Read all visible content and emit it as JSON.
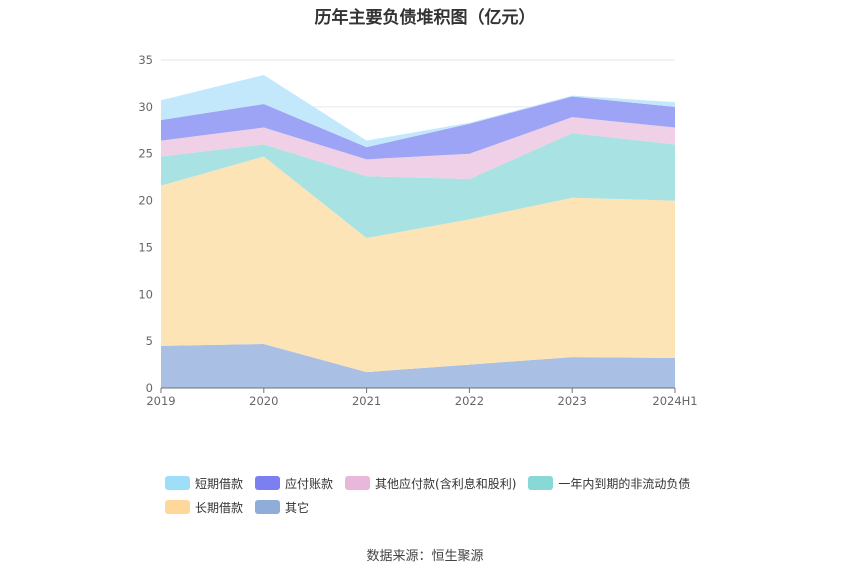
{
  "chart_data": {
    "type": "area",
    "stacked": true,
    "title": "历年主要负债堆积图（亿元）",
    "categories": [
      "2019",
      "2020",
      "2021",
      "2022",
      "2023",
      "2024H1"
    ],
    "ylim": [
      0,
      35
    ],
    "yticks": [
      0,
      5,
      10,
      15,
      20,
      25,
      30,
      35
    ],
    "grid": true,
    "legend_position": "bottom",
    "series": [
      {
        "name": "其它",
        "color": "#a9bfe3",
        "values": [
          4.5,
          4.7,
          1.7,
          2.5,
          3.3,
          3.2
        ]
      },
      {
        "name": "长期借款",
        "color": "#fde4b7",
        "values": [
          17.1,
          20.0,
          14.3,
          15.5,
          17.0,
          16.8
        ]
      },
      {
        "name": "一年内到期的非流动负债",
        "color": "#a9e2e2",
        "values": [
          3.1,
          1.3,
          6.6,
          4.3,
          6.9,
          6.0
        ]
      },
      {
        "name": "其他应付款(含利息和股利)",
        "color": "#f0d0e6",
        "values": [
          1.7,
          1.8,
          1.8,
          2.7,
          1.7,
          1.8
        ]
      },
      {
        "name": "应付账款",
        "color": "#9da4f5",
        "values": [
          2.2,
          2.5,
          1.3,
          3.2,
          2.2,
          2.2
        ]
      },
      {
        "name": "短期借款",
        "color": "#c3e8fc",
        "values": [
          2.1,
          3.1,
          0.7,
          0.1,
          0.1,
          0.5
        ]
      }
    ],
    "legend_rows": [
      [
        {
          "name": "短期借款",
          "color": "#9fdef8"
        },
        {
          "name": "应付账款",
          "color": "#7b7ff0"
        },
        {
          "name": "其他应付款(含利息和股利)",
          "color": "#e9b7da"
        },
        {
          "name": "一年内到期的非流动负债",
          "color": "#88d8d8"
        }
      ],
      [
        {
          "name": "长期借款",
          "color": "#fdd89a"
        },
        {
          "name": "其它",
          "color": "#8fadd9"
        }
      ]
    ]
  },
  "source_text": "数据来源：恒生聚源"
}
